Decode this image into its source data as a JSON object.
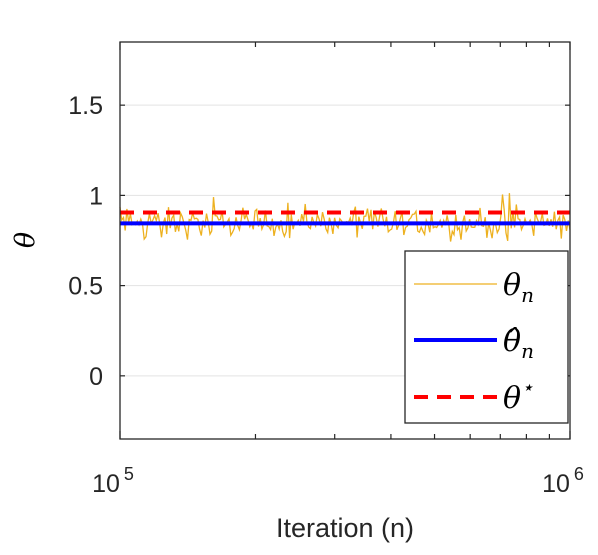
{
  "chart_data": {
    "type": "line",
    "xscale": "log",
    "xlim": [
      100000,
      1000000
    ],
    "ylim": [
      -0.35,
      1.85
    ],
    "xlabel": "Iteration (n)",
    "ylabel": "θ",
    "x_ticks": [
      {
        "value": 100000,
        "base": "10",
        "exp": "5"
      },
      {
        "value": 1000000,
        "base": "10",
        "exp": "6"
      }
    ],
    "y_ticks": [
      {
        "value": 0,
        "label": "0"
      },
      {
        "value": 0.5,
        "label": "0.5"
      },
      {
        "value": 1,
        "label": "1"
      },
      {
        "value": 1.5,
        "label": "1.5"
      }
    ],
    "grid": true,
    "legend_position": "bottom-right",
    "series": [
      {
        "name": "θ_n",
        "style": "noisy",
        "color": "#EDB120",
        "mean": 0.845,
        "spread": 0.05,
        "range": [
          0.66,
          1.05
        ]
      },
      {
        "name": "θ̂_n",
        "style": "solid",
        "color": "#0000FF",
        "value": 0.845
      },
      {
        "name": "θ*",
        "style": "dashed",
        "color": "#FF0000",
        "value": 0.905
      }
    ],
    "legend": [
      {
        "base": "θ",
        "sub": "n"
      },
      {
        "base": "θ̂",
        "sub": "n"
      },
      {
        "base": "θ",
        "sup": "⋆"
      }
    ]
  }
}
